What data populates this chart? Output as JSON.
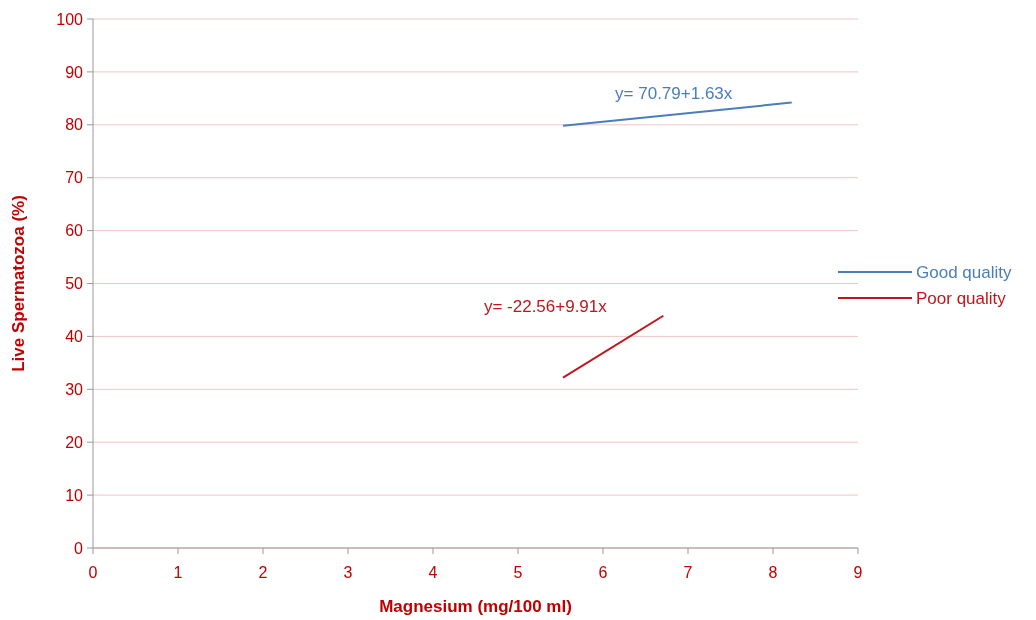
{
  "chart_data": {
    "type": "line",
    "xlabel": "Magnesium (mg/100 ml)",
    "ylabel": "Live Spermatozoa  (%)",
    "xlim": [
      0,
      9
    ],
    "xticks": [
      0,
      1,
      2,
      3,
      4,
      5,
      6,
      7,
      8,
      9
    ],
    "ylim": [
      0,
      100
    ],
    "yticks": [
      0,
      10,
      20,
      30,
      40,
      50,
      60,
      70,
      80,
      90,
      100
    ],
    "grid": "y",
    "legend": "right",
    "marker": "none",
    "line_style": "solid",
    "series": [
      {
        "name": "Good quality",
        "color": "#4a7ebb",
        "x": [
          5.53,
          8.22
        ],
        "values": [
          79.8,
          84.2
        ]
      },
      {
        "name": "Poor quality",
        "color": "#c0161b",
        "x": [
          5.53,
          6.71
        ],
        "values": [
          32.2,
          43.9
        ]
      }
    ],
    "annotations": [
      "y=  70.79+1.63x",
      "y=  -22.56+9.91x"
    ]
  }
}
